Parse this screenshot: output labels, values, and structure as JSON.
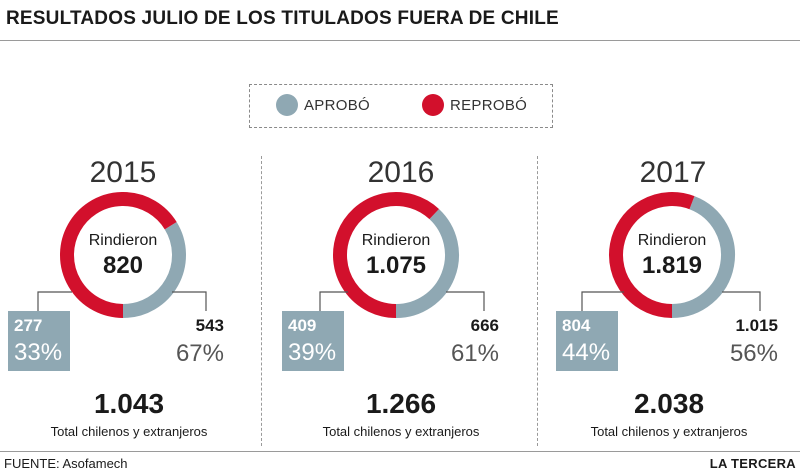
{
  "title": "RESULTADOS JULIO DE LOS TITULADOS FUERA DE CHILE",
  "legend": {
    "approved": {
      "label": "APROBÓ",
      "color": "#8fa8b3"
    },
    "failed": {
      "label": "REPROBÓ",
      "color": "#d2102c"
    }
  },
  "chart_data": [
    {
      "type": "pie",
      "year": "2015",
      "center_label": "Rindieron",
      "center_value": "820",
      "slices": [
        {
          "name": "APROBÓ",
          "value": 277,
          "pct_label": "33%",
          "value_label": "277"
        },
        {
          "name": "REPROBÓ",
          "value": 543,
          "pct_label": "67%",
          "value_label": "543"
        }
      ],
      "total": "1.043",
      "total_label": "Total chilenos y extranjeros"
    },
    {
      "type": "pie",
      "year": "2016",
      "center_label": "Rindieron",
      "center_value": "1.075",
      "slices": [
        {
          "name": "APROBÓ",
          "value": 409,
          "pct_label": "39%",
          "value_label": "409"
        },
        {
          "name": "REPROBÓ",
          "value": 666,
          "pct_label": "61%",
          "value_label": "666"
        }
      ],
      "total": "1.266",
      "total_label": "Total chilenos y extranjeros"
    },
    {
      "type": "pie",
      "year": "2017",
      "center_label": "Rindieron",
      "center_value": "1.819",
      "slices": [
        {
          "name": "APROBÓ",
          "value": 804,
          "pct_label": "44%",
          "value_label": "804"
        },
        {
          "name": "REPROBÓ",
          "value": 1015,
          "pct_label": "56%",
          "value_label": "1.015"
        }
      ],
      "total": "2.038",
      "total_label": "Total chilenos y extranjeros"
    }
  ],
  "footer": {
    "source": "FUENTE: Asofamech",
    "brand": "LA TERCERA"
  }
}
